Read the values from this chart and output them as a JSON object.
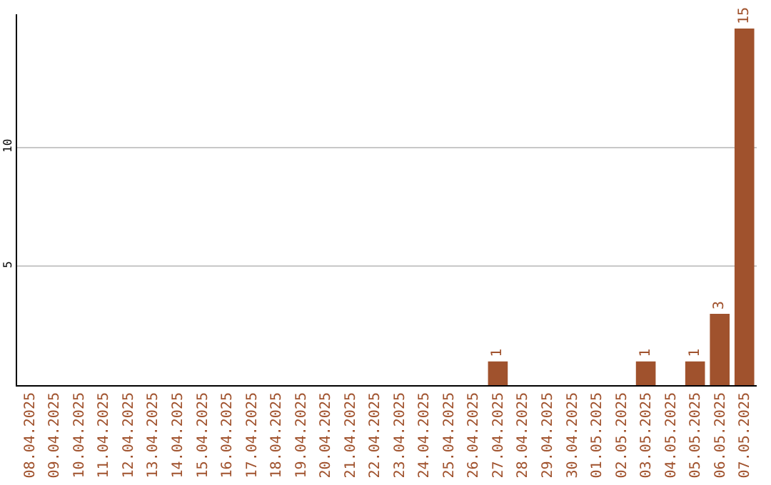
{
  "chart_data": {
    "type": "bar",
    "categories": [
      "08.04.2025",
      "09.04.2025",
      "10.04.2025",
      "11.04.2025",
      "12.04.2025",
      "13.04.2025",
      "14.04.2025",
      "15.04.2025",
      "16.04.2025",
      "17.04.2025",
      "18.04.2025",
      "19.04.2025",
      "20.04.2025",
      "21.04.2025",
      "22.04.2025",
      "23.04.2025",
      "24.04.2025",
      "25.04.2025",
      "26.04.2025",
      "27.04.2025",
      "28.04.2025",
      "29.04.2025",
      "30.04.2025",
      "01.05.2025",
      "02.05.2025",
      "03.05.2025",
      "04.05.2025",
      "05.05.2025",
      "06.05.2025",
      "07.05.2025"
    ],
    "values": [
      0,
      0,
      0,
      0,
      0,
      0,
      0,
      0,
      0,
      0,
      0,
      0,
      0,
      0,
      0,
      0,
      0,
      0,
      0,
      1,
      0,
      0,
      0,
      0,
      0,
      1,
      0,
      1,
      3,
      15
    ],
    "value_labels": [
      null,
      null,
      null,
      null,
      null,
      null,
      null,
      null,
      null,
      null,
      null,
      null,
      null,
      null,
      null,
      null,
      null,
      null,
      null,
      "1",
      null,
      null,
      null,
      null,
      null,
      "1",
      null,
      "1",
      "3",
      "15"
    ],
    "color": "#a0522d",
    "ylim": [
      0,
      15.6
    ],
    "yticks": [
      5,
      10
    ],
    "grid": "y",
    "legend": false
  }
}
